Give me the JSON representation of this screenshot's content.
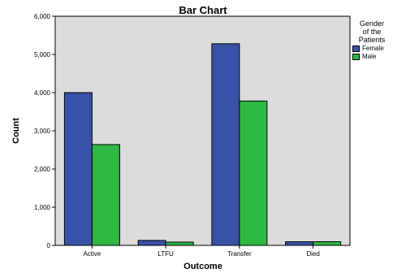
{
  "chart_data": {
    "type": "bar",
    "title": "Bar Chart",
    "xlabel": "Outcome",
    "ylabel": "Count",
    "categories": [
      "Active",
      "LTFU",
      "Transfer",
      "Died"
    ],
    "series": [
      {
        "name": "Female",
        "color": "#3a52a8",
        "values": [
          4000,
          130,
          5280,
          95
        ]
      },
      {
        "name": "Male",
        "color": "#2fb844",
        "values": [
          2640,
          85,
          3780,
          95
        ]
      }
    ],
    "ylim": [
      0,
      6000
    ],
    "yticks": [
      0,
      1000,
      2000,
      3000,
      4000,
      5000,
      6000
    ],
    "ytick_labels": [
      "0",
      "1,000",
      "2,000",
      "3,000",
      "4,000",
      "5,000",
      "6,000"
    ],
    "legend": {
      "title": "Gender of the Patients",
      "placement": "right"
    },
    "plot_background": "#dcdcdc",
    "grid": false
  }
}
